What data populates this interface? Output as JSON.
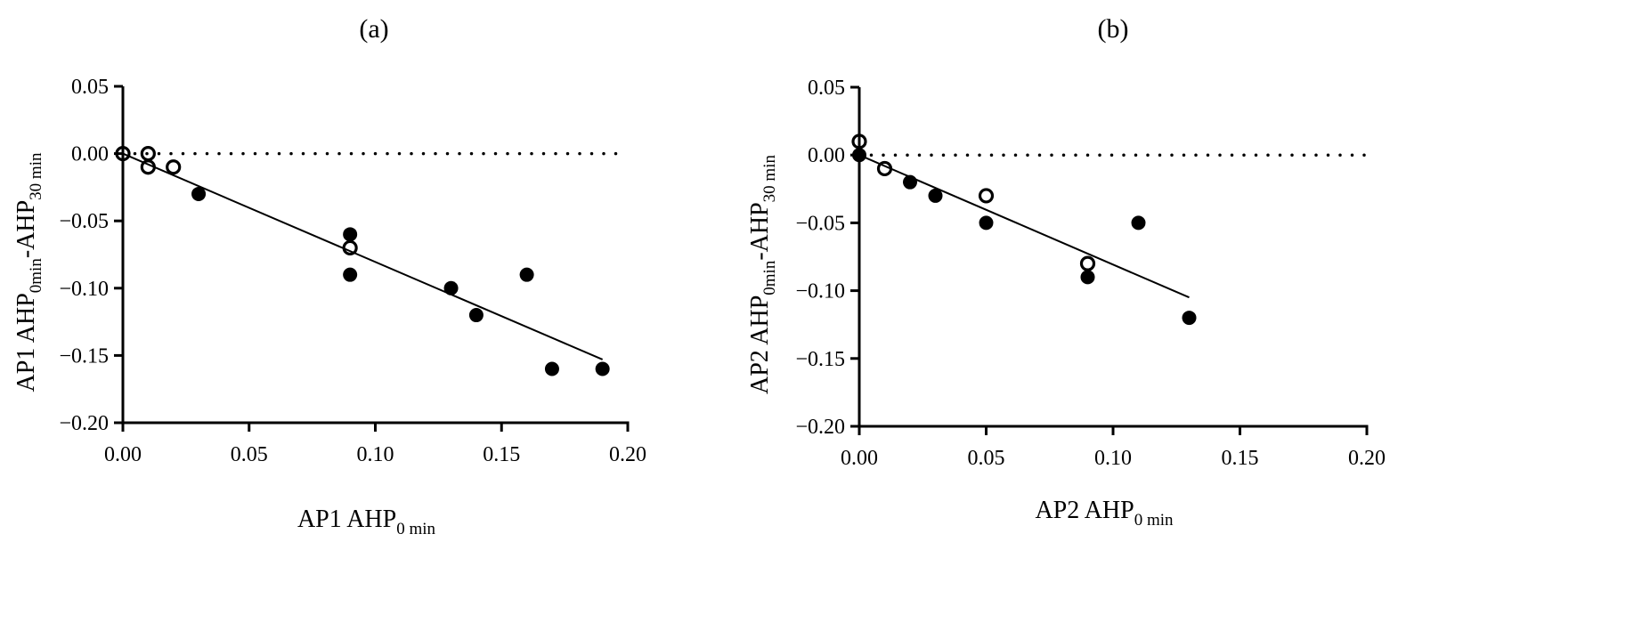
{
  "chart_data": [
    {
      "type": "scatter",
      "title": "(a)",
      "xlabel": {
        "main": "AP1 AHP",
        "sub": "0 min"
      },
      "ylabel": {
        "main1": "AP1 AHP",
        "sub1": "0min",
        "main2": "-AHP",
        "sub2": "30 min"
      },
      "xlim": [
        0,
        0.2
      ],
      "ylim": [
        -0.2,
        0.05
      ],
      "xticks": [
        "0.00",
        "0.05",
        "0.10",
        "0.15",
        "0.20"
      ],
      "yticks": [
        "0.05",
        "0.00",
        "−0.05",
        "−0.10",
        "−0.15",
        "−0.20"
      ],
      "reference_line": {
        "y": 0,
        "style": "dotted"
      },
      "series": [
        {
          "name": "filled",
          "marker": "filled-circle",
          "points": [
            [
              0.03,
              -0.03
            ],
            [
              0.09,
              -0.06
            ],
            [
              0.09,
              -0.09
            ],
            [
              0.13,
              -0.1
            ],
            [
              0.14,
              -0.12
            ],
            [
              0.16,
              -0.09
            ],
            [
              0.17,
              -0.16
            ],
            [
              0.19,
              -0.16
            ]
          ]
        },
        {
          "name": "open",
          "marker": "open-circle",
          "points": [
            [
              0.0,
              0.0
            ],
            [
              0.01,
              0.0
            ],
            [
              0.01,
              -0.01
            ],
            [
              0.02,
              -0.01
            ],
            [
              0.09,
              -0.07
            ]
          ]
        }
      ],
      "fit_line": [
        [
          0.0,
          0.0
        ],
        [
          0.19,
          -0.153
        ]
      ]
    },
    {
      "type": "scatter",
      "title": "(b)",
      "xlabel": {
        "main": "AP2 AHP",
        "sub": "0 min"
      },
      "ylabel": {
        "main1": "AP2 AHP",
        "sub1": "0min",
        "main2": "-AHP",
        "sub2": "30 min"
      },
      "xlim": [
        0,
        0.2
      ],
      "ylim": [
        -0.2,
        0.05
      ],
      "xticks": [
        "0.00",
        "0.05",
        "0.10",
        "0.15",
        "0.20"
      ],
      "yticks": [
        "0.05",
        "0.00",
        "−0.05",
        "−0.10",
        "−0.15",
        "−0.20"
      ],
      "reference_line": {
        "y": 0,
        "style": "dotted"
      },
      "series": [
        {
          "name": "filled",
          "marker": "filled-circle",
          "points": [
            [
              0.0,
              0.0
            ],
            [
              0.02,
              -0.02
            ],
            [
              0.03,
              -0.03
            ],
            [
              0.05,
              -0.05
            ],
            [
              0.09,
              -0.09
            ],
            [
              0.11,
              -0.05
            ],
            [
              0.13,
              -0.12
            ]
          ]
        },
        {
          "name": "open",
          "marker": "open-circle",
          "points": [
            [
              0.0,
              0.01
            ],
            [
              0.01,
              -0.01
            ],
            [
              0.05,
              -0.03
            ],
            [
              0.09,
              -0.08
            ]
          ]
        }
      ],
      "fit_line": [
        [
          0.0,
          0.0
        ],
        [
          0.13,
          -0.105
        ]
      ]
    }
  ]
}
